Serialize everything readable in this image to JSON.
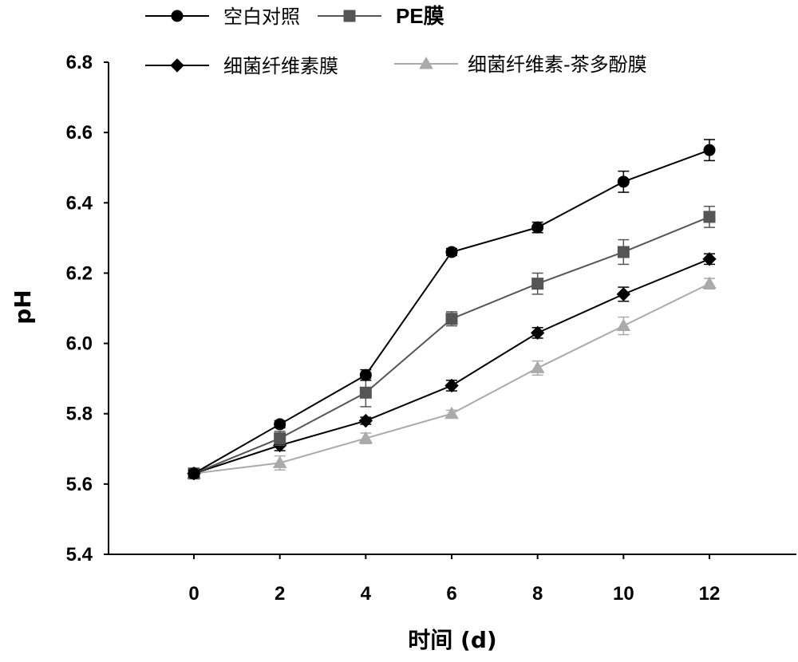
{
  "chart_data": {
    "type": "line",
    "xlabel": "时间 (d)",
    "ylabel": "pH",
    "x": [
      0,
      2,
      4,
      6,
      8,
      10,
      12
    ],
    "x_ticks": [
      "0",
      "2",
      "4",
      "6",
      "8",
      "10",
      "12"
    ],
    "y_ticks": [
      "5.4",
      "5.6",
      "5.8",
      "6.0",
      "6.2",
      "6.4",
      "6.6",
      "6.8"
    ],
    "xlim": [
      -2,
      14
    ],
    "ylim": [
      5.4,
      6.8
    ],
    "grid": false,
    "legend_position": "top",
    "series": [
      {
        "name": "空白对照",
        "marker": "circle",
        "color": "#000000",
        "values": [
          5.63,
          5.77,
          5.91,
          6.26,
          6.33,
          6.46,
          6.55
        ],
        "errors": [
          0.01,
          0.01,
          0.015,
          0.01,
          0.015,
          0.03,
          0.03
        ]
      },
      {
        "name": "PE膜",
        "marker": "square",
        "color": "#555555",
        "values": [
          5.63,
          5.73,
          5.86,
          6.07,
          6.17,
          6.26,
          6.36
        ],
        "errors": [
          0.01,
          0.02,
          0.04,
          0.02,
          0.03,
          0.035,
          0.03
        ]
      },
      {
        "name": "细菌纤维素膜",
        "marker": "diamond",
        "color": "#000000",
        "values": [
          5.63,
          5.71,
          5.78,
          5.88,
          6.03,
          6.14,
          6.24
        ],
        "errors": [
          0.01,
          0.015,
          0.01,
          0.015,
          0.015,
          0.02,
          0.015
        ]
      },
      {
        "name": "细菌纤维素-茶多酚膜",
        "marker": "triangle",
        "color": "#aaaaaa",
        "values": [
          5.63,
          5.66,
          5.73,
          5.8,
          5.93,
          6.05,
          6.17
        ],
        "errors": [
          0.01,
          0.02,
          0.015,
          0.01,
          0.02,
          0.025,
          0.015
        ]
      }
    ]
  }
}
